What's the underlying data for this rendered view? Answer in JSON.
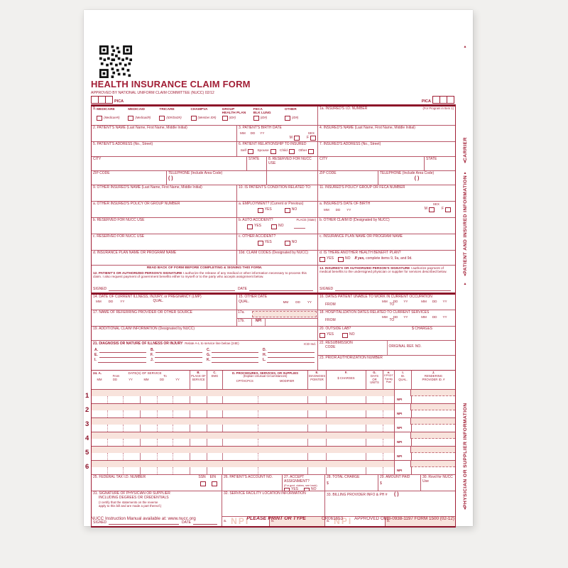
{
  "page": {
    "background": "#f1f0ee",
    "paper": "#ffffff",
    "ink_red": "#a11e35",
    "ink_dark": "#8c1128",
    "shade_pink": "#f8e3dc"
  },
  "header": {
    "title": "HEALTH INSURANCE CLAIM FORM",
    "subtitle": "APPROVED BY NATIONAL UNIFORM CLAIM COMMITTEE (NUCC) 02/12",
    "pica": "PICA"
  },
  "strip": {
    "carrier": "CARRIER",
    "patient": "PATIENT AND INSURED INFORMATION",
    "physician": "PHYSICIAN OR SUPPLIER INFORMATION"
  },
  "common": {
    "yes": "YES",
    "no": "NO",
    "mm": "MM",
    "dd": "DD",
    "yy": "YY",
    "sex": "SEX",
    "m": "M",
    "f": "F",
    "city": "CITY",
    "state": "STATE",
    "zip": "ZIP CODE",
    "telephone": "TELEPHONE (Include Area Code)",
    "paren": "(        )",
    "signed": "SIGNED",
    "date": "DATE",
    "from": "FROM",
    "to": "TO",
    "qual": "QUAL.",
    "npi": "NPI",
    "a": "a.",
    "b": "b.",
    "dollar": "$"
  },
  "box1": {
    "num": "1.",
    "options": [
      {
        "l1": "MEDICARE",
        "l2": "",
        "sub": "(Medicare#)"
      },
      {
        "l1": "MEDICAID",
        "l2": "",
        "sub": "(Medicaid#)"
      },
      {
        "l1": "TRICARE",
        "l2": "",
        "sub": "(ID#/DoD#)"
      },
      {
        "l1": "CHAMPVA",
        "l2": "",
        "sub": "(Member ID#)"
      },
      {
        "l1": "GROUP",
        "l2": "HEALTH PLAN",
        "sub": "(ID#)"
      },
      {
        "l1": "FECA",
        "l2": "BLK LUNG",
        "sub": "(ID#)"
      },
      {
        "l1": "OTHER",
        "l2": "",
        "sub": "(ID#)"
      }
    ]
  },
  "box1a": {
    "label": "1a. INSURED'S I.D. NUMBER",
    "hint": "(For Program in Item 1)"
  },
  "box2": {
    "label": "2. PATIENT'S NAME (Last Name, First Name, Middle Initial)"
  },
  "box3": {
    "label": "3. PATIENT'S BIRTH DATE"
  },
  "box4": {
    "label": "4. INSURED'S NAME (Last Name, First Name, Middle Initial)"
  },
  "box5": {
    "label": "5. PATIENT'S ADDRESS (No., Street)"
  },
  "box6": {
    "label": "6. PATIENT RELATIONSHIP TO INSURED",
    "options": [
      "Self",
      "Spouse",
      "Child",
      "Other"
    ]
  },
  "box7": {
    "label": "7. INSURED'S ADDRESS (No., Street)"
  },
  "box8": {
    "label": "8. RESERVED FOR NUCC USE"
  },
  "box9": {
    "label": "9. OTHER INSURED'S NAME (Last Name, First Name, Middle Initial)",
    "a": "a. OTHER INSURED'S POLICY OR GROUP NUMBER",
    "b": "b. RESERVED FOR NUCC USE",
    "c": "c. RESERVED FOR NUCC USE",
    "d": "d. INSURANCE PLAN NAME OR PROGRAM NAME"
  },
  "box10": {
    "label": "10. IS PATIENT'S CONDITION RELATED TO:",
    "a": "a. EMPLOYMENT? (Current or Previous)",
    "b": "b. AUTO ACCIDENT?",
    "place": "PLACE (State)",
    "c": "c. OTHER ACCIDENT?",
    "d": "10d. CLAIM CODES (Designated by NUCC)"
  },
  "box11": {
    "label": "11. INSURED'S POLICY GROUP OR FECA NUMBER",
    "a": "a. INSURED'S DATE OF BIRTH",
    "b": "b. OTHER CLAIM ID (Designated by NUCC)",
    "c": "c. INSURANCE PLAN NAME OR PROGRAM NAME",
    "d": "d. IS THERE ANOTHER HEALTH BENEFIT PLAN?",
    "if_yes": "If yes,",
    "if_yes_rest": " complete items 9, 9a, and 9d."
  },
  "box12": {
    "readback": "READ BACK OF FORM BEFORE COMPLETING & SIGNING THIS FORM.",
    "label": "12. PATIENT'S OR AUTHORIZED PERSON'S SIGNATURE",
    "body": "I authorize the release of any medical or other information necessary to process this claim. I also request payment of government benefits either to myself or to the party who accepts assignment below."
  },
  "box13": {
    "label": "13. INSURED'S OR AUTHORIZED PERSON'S SIGNATURE",
    "body": "I authorize payment of medical benefits to the undersigned physician or supplier for services described below."
  },
  "box14": {
    "label": "14. DATE OF CURRENT ILLNESS, INJURY, or PREGNANCY (LMP)"
  },
  "box15": {
    "label": "15. OTHER DATE"
  },
  "box16": {
    "label": "16. DATES PATIENT UNABLE TO WORK IN CURRENT OCCUPATION"
  },
  "box17": {
    "label": "17. NAME OF REFERRING PROVIDER OR OTHER SOURCE",
    "a": "17a.",
    "b": "17b."
  },
  "box18": {
    "label": "18. HOSPITALIZATION DATES RELATED TO CURRENT SERVICES"
  },
  "box19": {
    "label": "19. ADDITIONAL CLAIM INFORMATION (Designated by NUCC)"
  },
  "box20": {
    "label": "20. OUTSIDE LAB?",
    "charges": "$ CHARGES"
  },
  "box21": {
    "label": "21. DIAGNOSIS OR NATURE OF ILLNESS OR INJURY",
    "relate": "Relate A-L to service line below (24E)",
    "icd": "ICD Ind.",
    "letters": [
      "A.",
      "B.",
      "C.",
      "D.",
      "E.",
      "F.",
      "G.",
      "H.",
      "I.",
      "J.",
      "K.",
      "L."
    ]
  },
  "box22": {
    "label": "22. RESUBMISSION",
    "code": "CODE",
    "orig": "ORIGINAL REF. NO."
  },
  "box23": {
    "label": "23. PRIOR AUTHORIZATION NUMBER"
  },
  "box24": {
    "num": "24. A.",
    "dos": "DATE(S) OF SERVICE",
    "from": "From",
    "to": "To",
    "b": "B.",
    "place1": "PLACE OF",
    "place2": "SERVICE",
    "c": "C.",
    "emg": "EMG",
    "d": "D. PROCEDURES, SERVICES, OR SUPPLIES",
    "explain": "(Explain Unusual Circumstances)",
    "cpt": "CPT/HCPCS",
    "modifier": "MODIFIER",
    "e": "E.",
    "diagnosis": "DIAGNOSIS",
    "pointer": "POINTER",
    "f": "F.",
    "charges": "$ CHARGES",
    "g": "G.",
    "days": "DAYS",
    "or": "OR",
    "units": "UNITS",
    "h": "H.",
    "epsdt": "EPSDT",
    "family": "Family",
    "plan": "Plan",
    "i": "I.",
    "id": "ID.",
    "qual": "QUAL.",
    "j": "J.",
    "rendering": "RENDERING",
    "provider": "PROVIDER ID. #",
    "rows": [
      "1",
      "2",
      "3",
      "4",
      "5",
      "6"
    ]
  },
  "box25": {
    "label": "25. FEDERAL TAX I.D. NUMBER",
    "ssn": "SSN",
    "ein": "EIN"
  },
  "box26": {
    "label": "26. PATIENT'S ACCOUNT NO."
  },
  "box27": {
    "label": "27. ACCEPT ASSIGNMENT?",
    "small": "(For govt. claims, see back)"
  },
  "box28": {
    "label": "28. TOTAL CHARGE"
  },
  "box29": {
    "label": "29. AMOUNT PAID"
  },
  "box30": {
    "label": "30. Rsvd for NUCC Use"
  },
  "box31": {
    "label": "31. SIGNATURE OF PHYSICIAN OR SUPPLIER",
    "line2": "INCLUDING DEGREES OR CREDENTIALS",
    "line3": "(I certify that the statements on the reverse",
    "line4": "apply to this bill and are made a part thereof.)"
  },
  "box32": {
    "label": "32. SERVICE FACILITY LOCATION INFORMATION"
  },
  "box33": {
    "label": "33. BILLING PROVIDER INFO & PH #"
  },
  "footer": {
    "manual": "NUCC Instruction Manual available at: www.nucc.org",
    "print_type": "PLEASE PRINT OR TYPE",
    "code": "CR061653",
    "approved": "APPROVED OMB-0938-1197 FORM 1500 (02-12)"
  }
}
